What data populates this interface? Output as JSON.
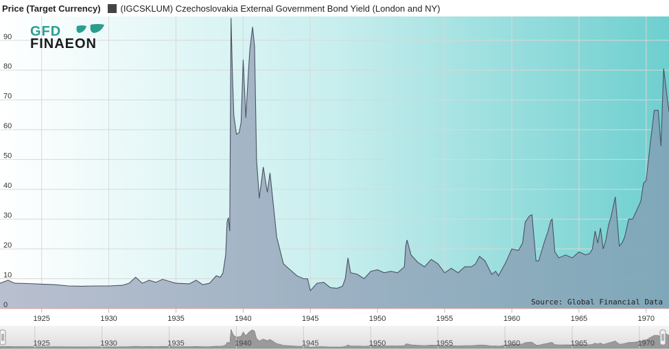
{
  "header": {
    "y_axis_title": "Price (Target Currency)",
    "legend_label": "(IGCSKLUM) Czechoslovakia External Government Bond Yield (London and NY)"
  },
  "logo": {
    "line1": "GFD",
    "line2": "FINAEON"
  },
  "source": "Source: Global Financial Data",
  "colors": {
    "series_line": "#4a5260",
    "fill_top": "#9fa8bd",
    "fill_bottom": "#8fa7bd",
    "bg_left": "#ffffff",
    "bg_right": "#6ecfcf",
    "logo_green": "#2a9d8f"
  },
  "chart_data": {
    "type": "area",
    "title": "",
    "ylabel": "Price (Target Currency)",
    "xlabel": "",
    "xlim": [
      1921.9,
      1971.7
    ],
    "ylim": [
      0,
      98
    ],
    "y_ticks": [
      0,
      10,
      20,
      30,
      40,
      50,
      60,
      70,
      80,
      90
    ],
    "x_ticks": [
      1925,
      1930,
      1935,
      1940,
      1945,
      1950,
      1955,
      1960,
      1965,
      1970
    ],
    "grid": true,
    "legend_position": "top-left",
    "series": [
      {
        "name": "(IGCSKLUM) Czechoslovakia External Government Bond Yield (London and NY)",
        "x": [
          1921.9,
          1922.5,
          1923.0,
          1924.0,
          1925.0,
          1926.0,
          1927.0,
          1928.0,
          1929.0,
          1930.0,
          1931.0,
          1931.5,
          1932.0,
          1932.5,
          1933.0,
          1933.5,
          1934.0,
          1935.0,
          1936.0,
          1936.5,
          1937.0,
          1937.5,
          1937.7,
          1938.0,
          1938.3,
          1938.5,
          1938.7,
          1938.8,
          1938.9,
          1939.0,
          1939.1,
          1939.2,
          1939.3,
          1939.5,
          1939.7,
          1939.85,
          1940.0,
          1940.2,
          1940.4,
          1940.5,
          1940.7,
          1940.85,
          1941.0,
          1941.2,
          1941.5,
          1941.8,
          1942.0,
          1942.5,
          1943.0,
          1943.5,
          1944.0,
          1944.5,
          1944.8,
          1945.0,
          1945.5,
          1946.0,
          1946.5,
          1947.0,
          1947.4,
          1947.6,
          1947.8,
          1948.0,
          1948.5,
          1949.0,
          1949.5,
          1950.0,
          1950.5,
          1951.0,
          1951.5,
          1952.0,
          1952.1,
          1952.2,
          1952.5,
          1953.0,
          1953.5,
          1954.0,
          1954.5,
          1955.0,
          1955.5,
          1956.0,
          1956.5,
          1957.0,
          1957.3,
          1957.6,
          1958.0,
          1958.5,
          1958.8,
          1959.0,
          1959.5,
          1959.8,
          1960.0,
          1960.5,
          1960.8,
          1961.0,
          1961.3,
          1961.5,
          1961.8,
          1962.0,
          1962.4,
          1962.7,
          1962.9,
          1963.0,
          1963.2,
          1963.5,
          1964.0,
          1964.5,
          1965.0,
          1965.5,
          1965.8,
          1966.0,
          1966.2,
          1966.4,
          1966.6,
          1966.8,
          1967.0,
          1967.2,
          1967.4,
          1967.7,
          1968.0,
          1968.2,
          1968.4,
          1968.7,
          1969.0,
          1969.3,
          1969.6,
          1969.8,
          1970.0,
          1970.3,
          1970.6,
          1970.9,
          1971.1,
          1971.3,
          1971.5,
          1971.7
        ],
        "values": [
          8.5,
          9.5,
          8.5,
          8.4,
          8.2,
          8.0,
          7.6,
          7.5,
          7.6,
          7.6,
          7.8,
          8.5,
          10.5,
          8.5,
          9.5,
          8.8,
          9.8,
          8.5,
          8.3,
          9.5,
          8.0,
          8.5,
          9.5,
          11.0,
          10.5,
          12.0,
          18.0,
          29.0,
          30.5,
          26.0,
          97.5,
          79.0,
          65.0,
          58.5,
          59.0,
          62.5,
          83.5,
          64.0,
          80.0,
          87.0,
          94.5,
          88.0,
          50.0,
          37.0,
          47.5,
          39.0,
          45.5,
          24.0,
          15.0,
          13.0,
          11.0,
          10.0,
          10.0,
          6.0,
          8.5,
          8.8,
          7.0,
          6.8,
          7.5,
          10.0,
          17.0,
          12.0,
          11.5,
          10.0,
          12.5,
          13.0,
          12.0,
          12.5,
          12.0,
          14.0,
          21.0,
          23.0,
          18.0,
          15.5,
          14.0,
          16.5,
          15.0,
          12.0,
          13.5,
          12.0,
          14.0,
          14.0,
          15.0,
          17.5,
          16.0,
          11.5,
          12.5,
          11.0,
          15.0,
          18.0,
          20.0,
          19.5,
          22.0,
          29.0,
          31.0,
          31.5,
          16.0,
          16.0,
          22.0,
          26.0,
          29.5,
          30.0,
          19.0,
          17.0,
          18.0,
          17.0,
          19.0,
          18.0,
          18.5,
          20.0,
          26.0,
          22.0,
          27.0,
          20.0,
          23.0,
          28.0,
          31.0,
          37.5,
          21.0,
          22.0,
          24.0,
          30.0,
          30.0,
          33.0,
          36.0,
          42.0,
          43.0,
          55.0,
          66.5,
          66.5,
          54.5,
          80.5,
          73.0,
          66.0
        ]
      }
    ]
  }
}
